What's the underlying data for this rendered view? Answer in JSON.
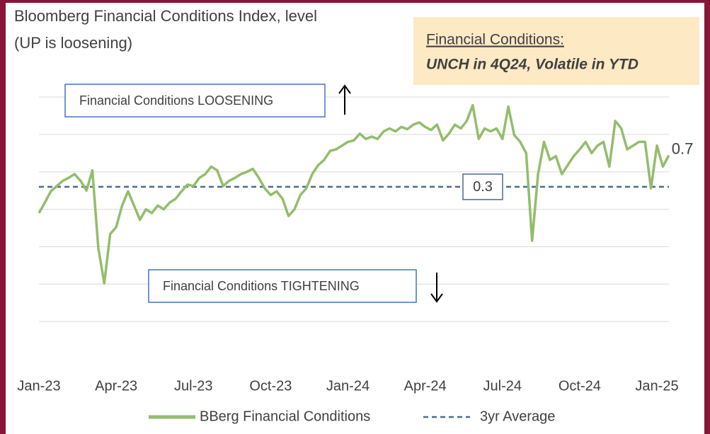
{
  "chart_data": {
    "type": "line",
    "title": "Bloomberg Financial Conditions Index, level",
    "subtitle": "(UP is loosening)",
    "note": {
      "heading": "Financial Conditions:",
      "text": "UNCH in 4Q24, Volatile in  YTD"
    },
    "annotations": [
      "Financial Conditions LOOSENING",
      "Financial Conditions TIGHTENING"
    ],
    "categories": [
      "Jan-23",
      null,
      null,
      null,
      null,
      null,
      null,
      null,
      null,
      null,
      null,
      null,
      null,
      "Apr-23",
      null,
      null,
      null,
      null,
      null,
      null,
      null,
      null,
      null,
      null,
      null,
      null,
      "Jul-23",
      null,
      null,
      null,
      null,
      null,
      null,
      null,
      null,
      null,
      null,
      null,
      null,
      "Oct-23",
      null,
      null,
      null,
      null,
      null,
      null,
      null,
      null,
      null,
      null,
      null,
      null,
      "Jan-24",
      null,
      null,
      null,
      null,
      null,
      null,
      null,
      null,
      null,
      null,
      null,
      null,
      "Apr-24",
      null,
      null,
      null,
      null,
      null,
      null,
      null,
      null,
      null,
      null,
      null,
      null,
      "Jul-24",
      null,
      null,
      null,
      null,
      null,
      null,
      null,
      null,
      null,
      null,
      null,
      null,
      "Oct-24",
      null,
      null,
      null,
      null,
      null,
      null,
      null,
      null,
      null,
      null,
      null,
      null,
      "Jan-25",
      null,
      null
    ],
    "series": [
      {
        "name": "BBerg Financial Conditions",
        "color": "#93bd6c",
        "values": [
          -0.05,
          0.09,
          0.24,
          0.31,
          0.38,
          0.42,
          0.47,
          0.38,
          0.25,
          0.52,
          -0.52,
          -0.99,
          -0.33,
          -0.24,
          0.05,
          0.24,
          0.05,
          -0.14,
          0,
          -0.05,
          0.05,
          0,
          0.09,
          0.14,
          0.24,
          0.33,
          0.31,
          0.42,
          0.47,
          0.57,
          0.52,
          0.31,
          0.38,
          0.42,
          0.47,
          0.5,
          0.54,
          0.42,
          0.28,
          0.19,
          0.24,
          0.14,
          -0.09,
          0,
          0.19,
          0.28,
          0.47,
          0.59,
          0.66,
          0.78,
          0.8,
          0.85,
          0.9,
          0.92,
          1.01,
          0.94,
          0.97,
          0.94,
          1.04,
          1.08,
          1.04,
          1.1,
          1.07,
          1.13,
          1.16,
          1.1,
          1.06,
          1.13,
          0.92,
          1.01,
          1.13,
          1.08,
          1.18,
          1.39,
          0.94,
          1.08,
          1.04,
          1.08,
          0.94,
          1.37,
          0.99,
          0.9,
          0.75,
          -0.42,
          0.47,
          0.9,
          0.66,
          0.71,
          0.47,
          0.59,
          0.71,
          0.8,
          0.9,
          0.75,
          0.85,
          0.9,
          0.57,
          1.18,
          1.08,
          0.8,
          0.85,
          0.9,
          0.9,
          0.28,
          0.85,
          0.57,
          0.72
        ],
        "value_labels": [
          null,
          null,
          null,
          null,
          null,
          null,
          null,
          null,
          null,
          null,
          null,
          null,
          null,
          null,
          null,
          null,
          null,
          null,
          null,
          null,
          null,
          null,
          null,
          null,
          null,
          null,
          null,
          null,
          null,
          null,
          null,
          null,
          null,
          null,
          null,
          null,
          null,
          null,
          null,
          null,
          null,
          null,
          null,
          null,
          null,
          null,
          null,
          null,
          null,
          null,
          null,
          null,
          null,
          null,
          null,
          null,
          null,
          null,
          null,
          null,
          null,
          null,
          null,
          null,
          null,
          null,
          null,
          null,
          null,
          null,
          null,
          null,
          null,
          null,
          null,
          null,
          null,
          null,
          null,
          null,
          null,
          null,
          null,
          null,
          null,
          null,
          null,
          null,
          null,
          null,
          null,
          null,
          null,
          null,
          null,
          null,
          null,
          null,
          null,
          null,
          null,
          null,
          null,
          null,
          null,
          null,
          "0.7"
        ]
      }
    ],
    "reference_line": {
      "name": "3yr Average",
      "color": "#4a6a94",
      "value": 0.3
    },
    "ylim": [
      -2,
      1.5
    ],
    "yticks": [
      -1.5,
      -1,
      -0.5,
      0,
      0.5,
      1,
      1.5
    ],
    "grid": true
  }
}
